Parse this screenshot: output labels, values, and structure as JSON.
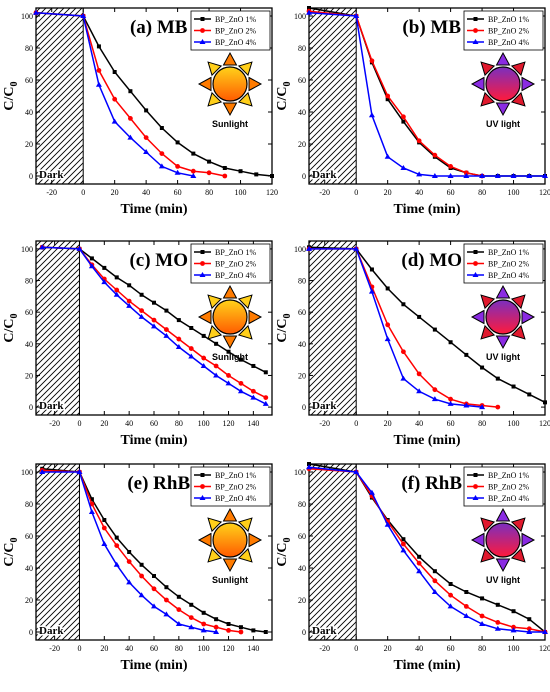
{
  "figure": {
    "dark_label": "Dark",
    "ylabel": "C/C",
    "ylabel_sub": "0",
    "xlabel": "Time (min)",
    "legend": [
      "BP_ZnO 1%",
      "BP_ZnO 2%",
      "BP_ZnO 4%"
    ],
    "colors": {
      "s1": "#000000",
      "s2": "#ff0000",
      "s3": "#0000ff"
    },
    "sun_icon": "sun-icon",
    "uv_icon": "uv-icon"
  },
  "chart_data": [
    {
      "type": "line",
      "panel": "a",
      "title": "(a) MB",
      "light": "Sunlight",
      "xlabel": "Time (min)",
      "ylabel": "C/C0",
      "xlim": [
        -30,
        120
      ],
      "ylim": [
        -5,
        105
      ],
      "xticks": [
        -20,
        0,
        20,
        40,
        60,
        80,
        100,
        120
      ],
      "yticks": [
        0,
        20,
        40,
        60,
        80,
        100
      ],
      "dark_region": [
        -30,
        0
      ],
      "series": [
        {
          "name": "BP_ZnO 1%",
          "x": [
            -30,
            0,
            10,
            20,
            30,
            40,
            50,
            60,
            70,
            80,
            90,
            100,
            110,
            120
          ],
          "y": [
            102,
            100,
            81,
            65,
            53,
            41,
            30,
            21,
            14,
            9,
            5,
            3,
            1,
            0
          ]
        },
        {
          "name": "BP_ZnO 2%",
          "x": [
            -30,
            0,
            10,
            20,
            30,
            40,
            50,
            60,
            70,
            80,
            90
          ],
          "y": [
            102,
            100,
            66,
            48,
            36,
            24,
            14,
            6,
            3,
            2,
            0
          ]
        },
        {
          "name": "BP_ZnO 4%",
          "x": [
            -30,
            0,
            10,
            20,
            30,
            40,
            50,
            60,
            70
          ],
          "y": [
            102,
            100,
            57,
            34,
            24,
            15,
            6,
            2,
            0
          ]
        }
      ]
    },
    {
      "type": "line",
      "panel": "b",
      "title": "(b) MB",
      "light": "UV light",
      "xlabel": "Time (min)",
      "ylabel": "C/C0",
      "xlim": [
        -30,
        120
      ],
      "ylim": [
        -5,
        105
      ],
      "xticks": [
        -20,
        0,
        20,
        40,
        60,
        80,
        100,
        120
      ],
      "yticks": [
        0,
        20,
        40,
        60,
        80,
        100
      ],
      "dark_region": [
        -30,
        0
      ],
      "series": [
        {
          "name": "BP_ZnO 1%",
          "x": [
            -30,
            0,
            10,
            20,
            30,
            40,
            50,
            60,
            70,
            80,
            90,
            100,
            110,
            120
          ],
          "y": [
            105,
            100,
            71,
            48,
            34,
            21,
            12,
            5,
            2,
            0,
            0,
            0,
            0,
            0
          ]
        },
        {
          "name": "BP_ZnO 2%",
          "x": [
            -30,
            0,
            10,
            20,
            30,
            40,
            50,
            60,
            70,
            80
          ],
          "y": [
            103,
            100,
            72,
            50,
            37,
            22,
            13,
            6,
            2,
            0
          ]
        },
        {
          "name": "BP_ZnO 4%",
          "x": [
            -30,
            0,
            10,
            20,
            30,
            40,
            50,
            60,
            70,
            80,
            90,
            100,
            110,
            120
          ],
          "y": [
            102,
            100,
            38,
            12,
            5,
            1,
            0,
            0,
            0,
            0,
            0,
            0,
            0,
            0
          ]
        }
      ]
    },
    {
      "type": "line",
      "panel": "c",
      "title": "(c) MO",
      "light": "Sunlight",
      "xlabel": "Time (min)",
      "ylabel": "C/C0",
      "xlim": [
        -35,
        155
      ],
      "ylim": [
        -5,
        105
      ],
      "xticks": [
        -20,
        0,
        20,
        40,
        60,
        80,
        100,
        120,
        140
      ],
      "yticks": [
        0,
        20,
        40,
        60,
        80,
        100
      ],
      "dark_region": [
        -35,
        0
      ],
      "series": [
        {
          "name": "BP_ZnO 1%",
          "x": [
            -30,
            0,
            10,
            20,
            30,
            40,
            50,
            60,
            70,
            80,
            90,
            100,
            110,
            120,
            130,
            140,
            150
          ],
          "y": [
            101,
            100,
            94,
            88,
            82,
            77,
            71,
            66,
            61,
            55,
            50,
            45,
            40,
            35,
            30,
            26,
            22
          ]
        },
        {
          "name": "BP_ZnO 2%",
          "x": [
            -30,
            0,
            10,
            20,
            30,
            40,
            50,
            60,
            70,
            80,
            90,
            100,
            110,
            120,
            130,
            140,
            150
          ],
          "y": [
            101,
            100,
            90,
            81,
            74,
            67,
            61,
            55,
            49,
            43,
            37,
            31,
            26,
            20,
            15,
            10,
            6
          ]
        },
        {
          "name": "BP_ZnO 4%",
          "x": [
            -30,
            0,
            10,
            20,
            30,
            40,
            50,
            60,
            70,
            80,
            90,
            100,
            110,
            120,
            130,
            140,
            150
          ],
          "y": [
            101,
            100,
            89,
            79,
            71,
            64,
            57,
            51,
            45,
            38,
            32,
            26,
            20,
            15,
            10,
            6,
            2
          ]
        }
      ]
    },
    {
      "type": "line",
      "panel": "d",
      "title": "(d) MO",
      "light": "UV light",
      "xlabel": "Time (min)",
      "ylabel": "C/C0",
      "xlim": [
        -30,
        120
      ],
      "ylim": [
        -5,
        105
      ],
      "xticks": [
        -20,
        0,
        20,
        40,
        60,
        80,
        100,
        120
      ],
      "yticks": [
        0,
        20,
        40,
        60,
        80,
        100
      ],
      "dark_region": [
        -30,
        0
      ],
      "series": [
        {
          "name": "BP_ZnO 1%",
          "x": [
            -30,
            0,
            10,
            20,
            30,
            40,
            50,
            60,
            70,
            80,
            90,
            100,
            110,
            120
          ],
          "y": [
            101,
            100,
            87,
            75,
            65,
            57,
            49,
            41,
            33,
            25,
            18,
            13,
            8,
            3
          ]
        },
        {
          "name": "BP_ZnO 2%",
          "x": [
            -30,
            0,
            10,
            20,
            30,
            40,
            50,
            60,
            70,
            80,
            90
          ],
          "y": [
            100,
            100,
            76,
            52,
            35,
            21,
            11,
            5,
            2,
            1,
            0
          ]
        },
        {
          "name": "BP_ZnO 4%",
          "x": [
            -30,
            0,
            10,
            20,
            30,
            40,
            50,
            60,
            70,
            80
          ],
          "y": [
            100,
            100,
            73,
            43,
            18,
            10,
            5,
            2,
            1,
            0
          ]
        }
      ]
    },
    {
      "type": "line",
      "panel": "e",
      "title": "(e) RhB",
      "light": "Sunlight",
      "xlabel": "Time (min)",
      "ylabel": "C/C0",
      "xlim": [
        -35,
        155
      ],
      "ylim": [
        -5,
        105
      ],
      "xticks": [
        -20,
        0,
        20,
        40,
        60,
        80,
        100,
        120,
        140
      ],
      "yticks": [
        0,
        20,
        40,
        60,
        80,
        100
      ],
      "dark_region": [
        -35,
        0
      ],
      "series": [
        {
          "name": "BP_ZnO 1%",
          "x": [
            -30,
            0,
            10,
            20,
            30,
            40,
            50,
            60,
            70,
            80,
            90,
            100,
            110,
            120,
            130,
            140,
            150
          ],
          "y": [
            102,
            100,
            83,
            70,
            59,
            50,
            42,
            35,
            28,
            22,
            17,
            12,
            8,
            5,
            3,
            1,
            0
          ]
        },
        {
          "name": "BP_ZnO 2%",
          "x": [
            -30,
            0,
            10,
            20,
            30,
            40,
            50,
            60,
            70,
            80,
            90,
            100,
            110,
            120,
            130
          ],
          "y": [
            101,
            100,
            80,
            65,
            54,
            44,
            35,
            27,
            20,
            14,
            9,
            5,
            3,
            1,
            0
          ]
        },
        {
          "name": "BP_ZnO 4%",
          "x": [
            -30,
            0,
            10,
            20,
            30,
            40,
            50,
            60,
            70,
            80,
            90,
            100,
            110
          ],
          "y": [
            100,
            100,
            75,
            55,
            42,
            31,
            23,
            16,
            11,
            5,
            3,
            1,
            0
          ]
        }
      ]
    },
    {
      "type": "line",
      "panel": "f",
      "title": "(f) RhB",
      "light": "UV light",
      "xlabel": "Time (min)",
      "ylabel": "C/C0",
      "xlim": [
        -30,
        120
      ],
      "ylim": [
        -5,
        105
      ],
      "xticks": [
        -20,
        0,
        20,
        40,
        60,
        80,
        100,
        120
      ],
      "yticks": [
        0,
        20,
        40,
        60,
        80,
        100
      ],
      "dark_region": [
        -30,
        0
      ],
      "series": [
        {
          "name": "BP_ZnO 1%",
          "x": [
            -30,
            0,
            10,
            20,
            30,
            40,
            50,
            60,
            70,
            80,
            90,
            100,
            110,
            120
          ],
          "y": [
            105,
            100,
            84,
            70,
            58,
            47,
            38,
            30,
            25,
            21,
            17,
            13,
            8,
            0
          ]
        },
        {
          "name": "BP_ZnO 2%",
          "x": [
            -30,
            0,
            10,
            20,
            30,
            40,
            50,
            60,
            70,
            80,
            90,
            100,
            110,
            120
          ],
          "y": [
            102,
            100,
            85,
            69,
            55,
            43,
            32,
            23,
            16,
            10,
            6,
            3,
            2,
            0
          ]
        },
        {
          "name": "BP_ZnO 4%",
          "x": [
            -30,
            0,
            10,
            20,
            30,
            40,
            50,
            60,
            70,
            80,
            90,
            100,
            110,
            120
          ],
          "y": [
            103,
            100,
            87,
            67,
            51,
            38,
            25,
            16,
            10,
            5,
            2,
            1,
            0,
            0
          ]
        }
      ]
    }
  ]
}
